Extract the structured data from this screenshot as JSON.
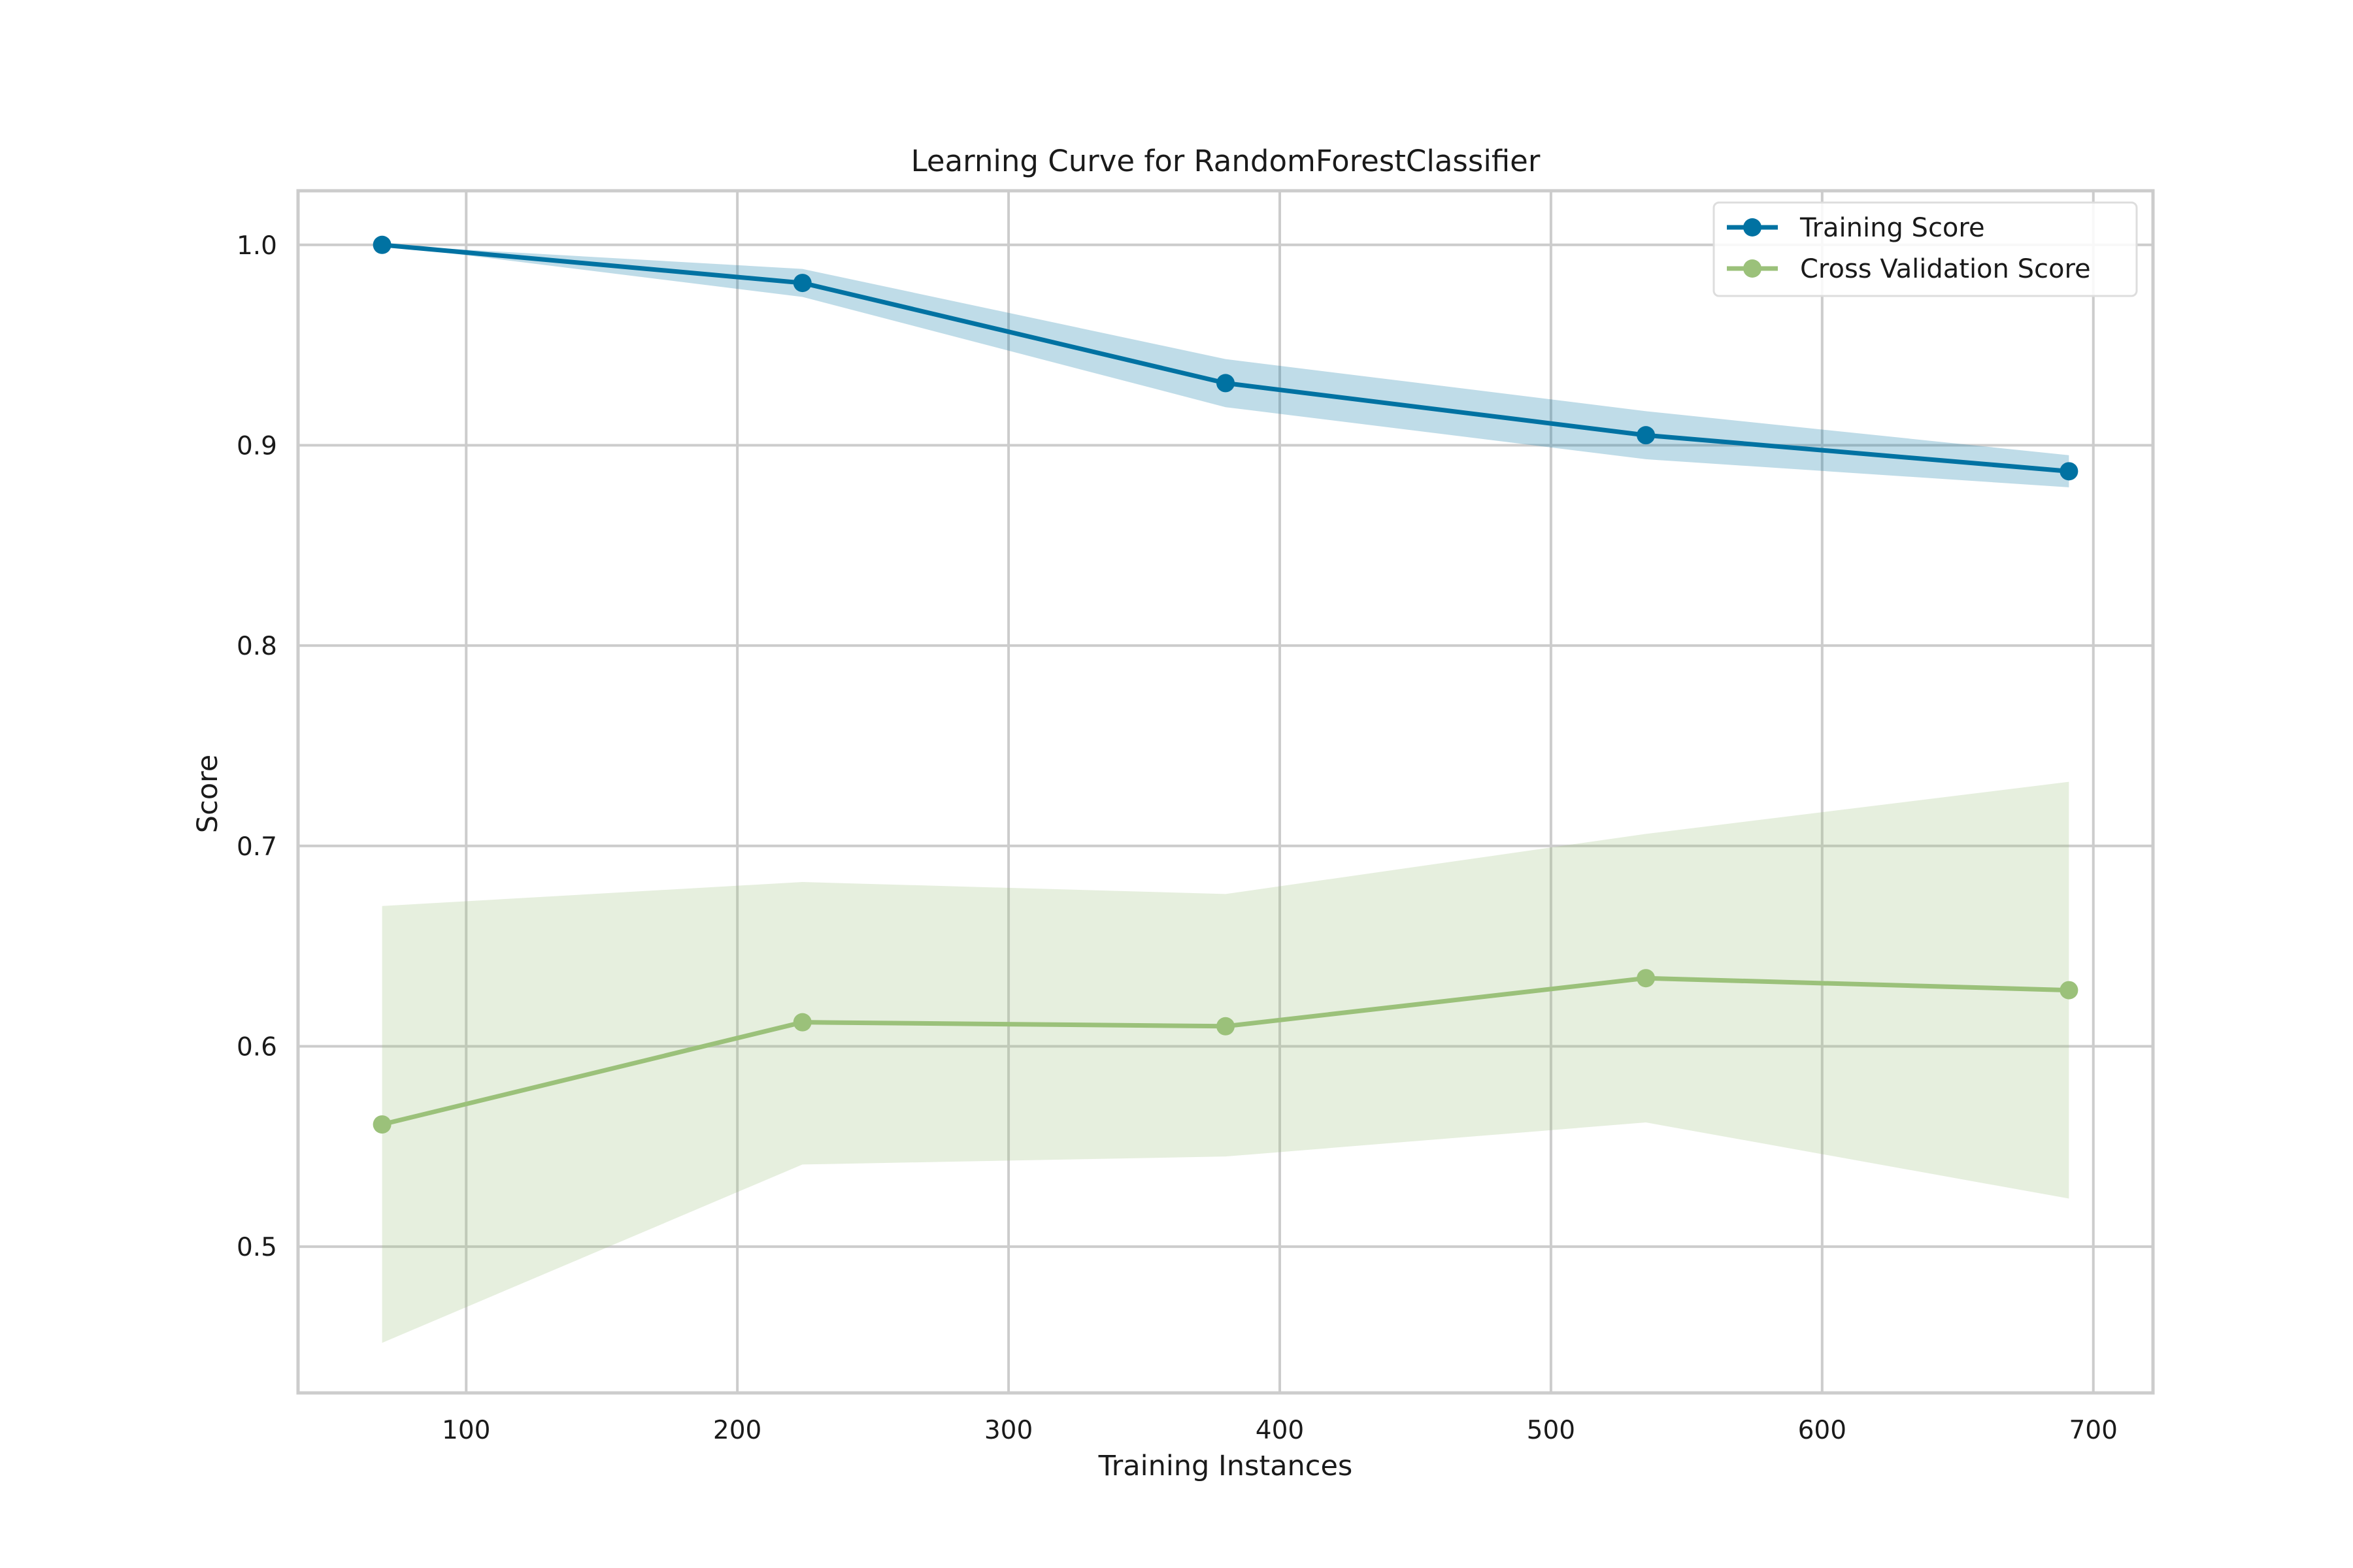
{
  "chart_data": {
    "type": "line",
    "title": "Learning Curve for RandomForestClassifier",
    "xlabel": "Training Instances",
    "ylabel": "Score",
    "xlim": [
      38,
      722
    ],
    "ylim": [
      0.427,
      1.027
    ],
    "xticks": [
      100,
      200,
      300,
      400,
      500,
      600,
      700
    ],
    "yticks": [
      0.5,
      0.6,
      0.7,
      0.8,
      0.9,
      1.0
    ],
    "xtick_labels": [
      "100",
      "200",
      "300",
      "400",
      "500",
      "600",
      "700"
    ],
    "ytick_labels": [
      "0.5",
      "0.6",
      "0.7",
      "0.8",
      "0.9",
      "1.0"
    ],
    "grid": true,
    "legend_position": "top-right",
    "x": [
      69,
      224,
      380,
      535,
      691
    ],
    "series": [
      {
        "name": "Training Score",
        "color": "#0072a2",
        "band_color": "#0072a2",
        "values": [
          1.0,
          0.981,
          0.931,
          0.905,
          0.887
        ],
        "upper": [
          1.0,
          0.988,
          0.943,
          0.917,
          0.895
        ],
        "lower": [
          1.0,
          0.974,
          0.919,
          0.893,
          0.879
        ]
      },
      {
        "name": "Cross Validation Score",
        "color": "#9bc17a",
        "band_color": "#9bc17a",
        "values": [
          0.561,
          0.612,
          0.61,
          0.634,
          0.628
        ],
        "upper": [
          0.67,
          0.682,
          0.676,
          0.706,
          0.732
        ],
        "lower": [
          0.452,
          0.541,
          0.545,
          0.562,
          0.524
        ]
      }
    ]
  }
}
